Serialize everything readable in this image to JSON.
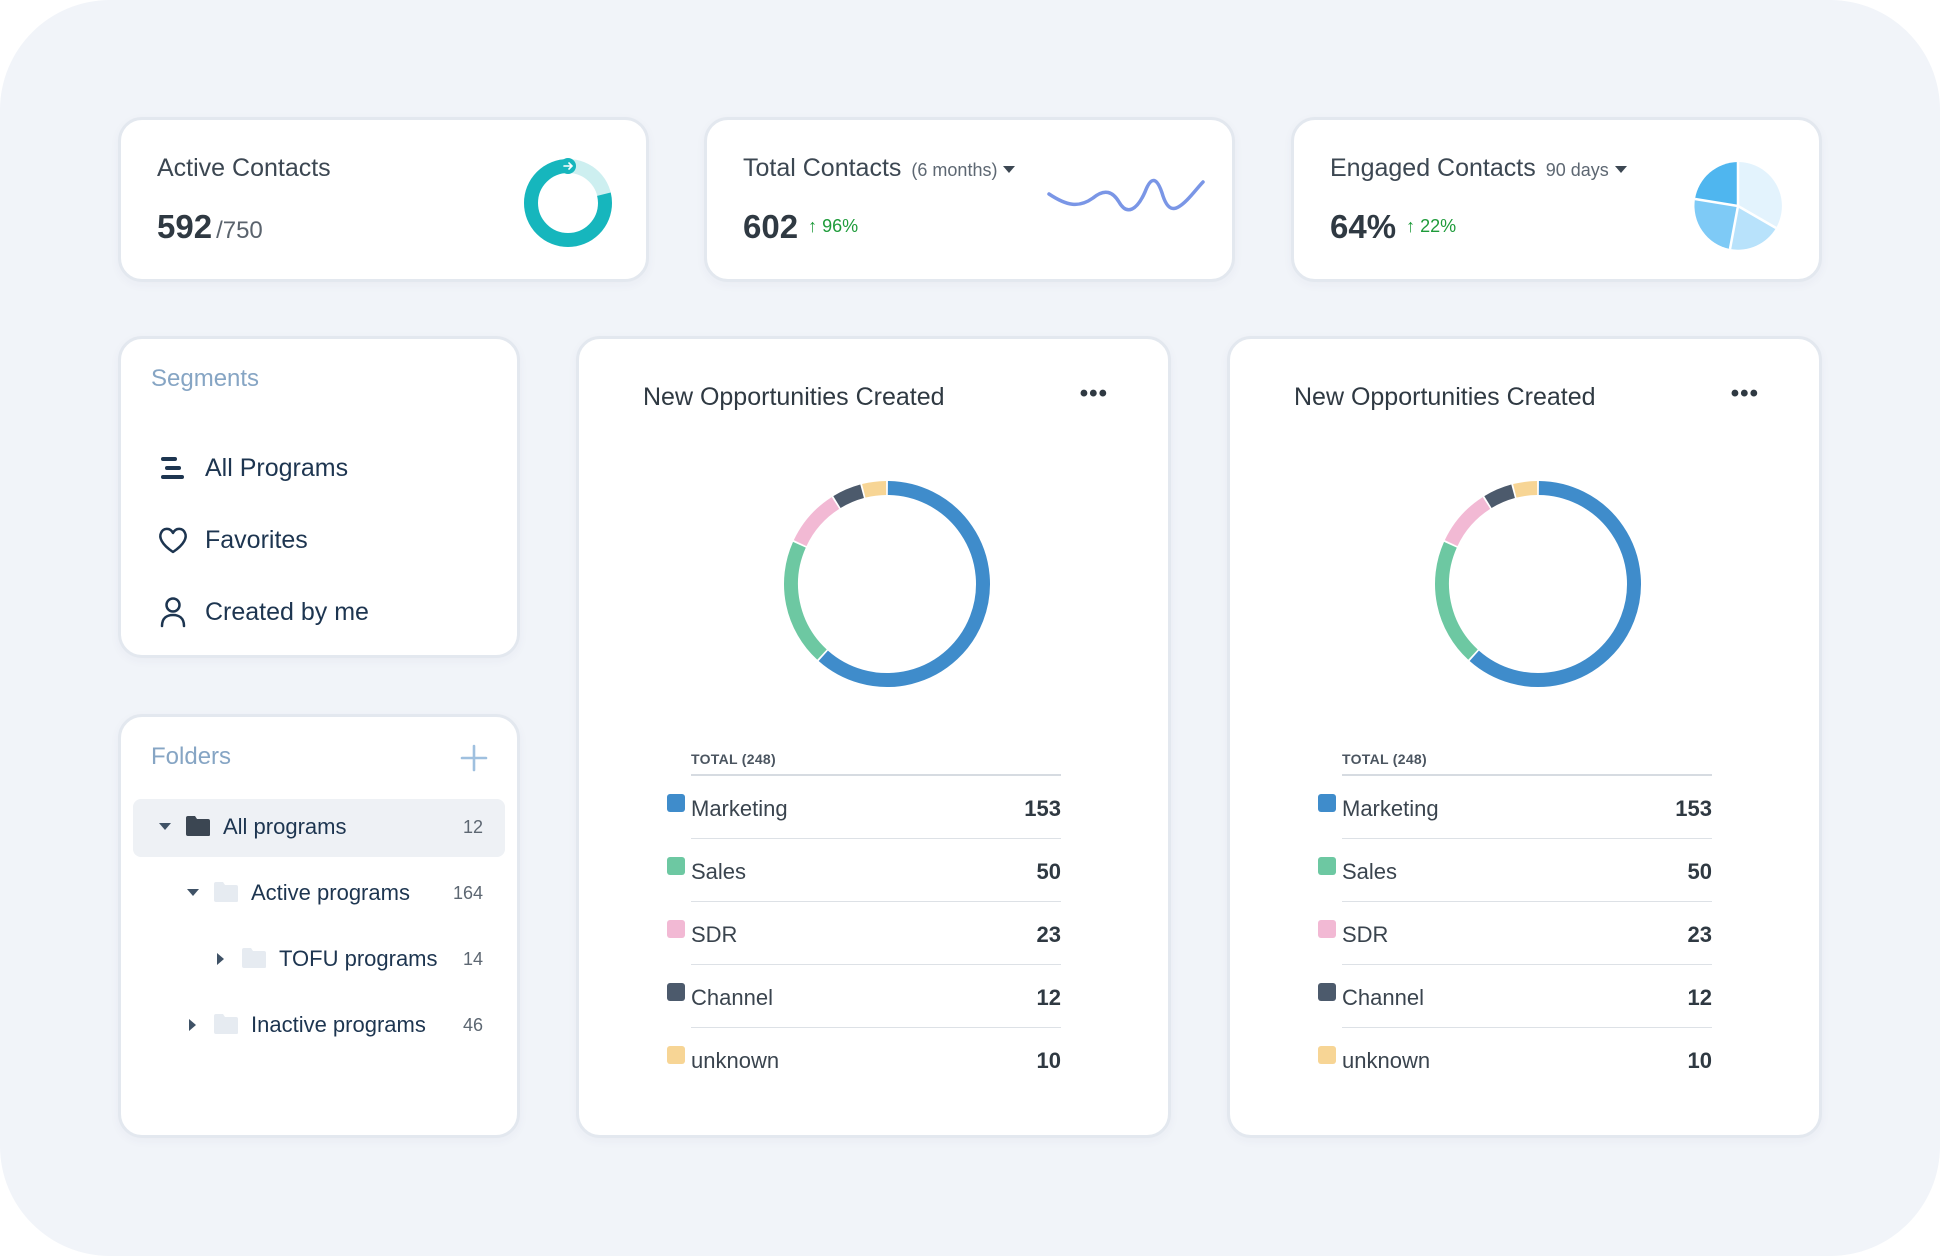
{
  "stats": {
    "active": {
      "title": "Active Contacts",
      "value": "592",
      "denominator": "/750",
      "fraction": 0.789
    },
    "total": {
      "title": "Total Contacts",
      "period": "(6 months)",
      "value": "602",
      "delta": "↑ 96%"
    },
    "engaged": {
      "title": "Engaged Contacts",
      "period": "90 days",
      "value": "64%",
      "delta": "↑ 22%"
    }
  },
  "segments": {
    "title": "Segments",
    "items": [
      {
        "label": "All Programs",
        "icon": "list-icon"
      },
      {
        "label": "Favorites",
        "icon": "heart-icon"
      },
      {
        "label": "Created by me",
        "icon": "user-icon"
      }
    ]
  },
  "folders": {
    "title": "Folders",
    "items": [
      {
        "label": "All programs",
        "count": "12",
        "expanded": true,
        "level": 0,
        "selected": true
      },
      {
        "label": "Active programs",
        "count": "164",
        "expanded": true,
        "level": 1
      },
      {
        "label": "TOFU programs",
        "count": "14",
        "expanded": false,
        "level": 2
      },
      {
        "label": "Inactive programs",
        "count": "46",
        "expanded": false,
        "level": 1
      }
    ]
  },
  "opportunities": [
    {
      "title": "New Opportunities Created",
      "more": "•••",
      "total_label": "TOTAL (248)"
    },
    {
      "title": "New Opportunities Created",
      "more": "•••",
      "total_label": "TOTAL (248)"
    }
  ],
  "chart_data": [
    {
      "type": "pie",
      "categories": [
        "Marketing",
        "Sales",
        "SDR",
        "Channel",
        "unknown"
      ],
      "values": [
        153,
        50,
        23,
        12,
        10
      ],
      "colors": [
        "#3f8ccb",
        "#6dc8a2",
        "#f2b9d4",
        "#4c5a6c",
        "#f7d595"
      ],
      "title": "New Opportunities Created"
    },
    {
      "type": "pie",
      "categories": [
        "Marketing",
        "Sales",
        "SDR",
        "Channel",
        "unknown"
      ],
      "values": [
        153,
        50,
        23,
        12,
        10
      ],
      "colors": [
        "#3f8ccb",
        "#6dc8a2",
        "#f2b9d4",
        "#4c5a6c",
        "#f7d595"
      ],
      "title": "New Opportunities Created"
    }
  ],
  "colors": {
    "teal": "#16b6bd",
    "teal_light": "#cdeff0",
    "wave": "#7a96e6",
    "pie_dark": "#4fb6ef",
    "pie_mid": "#7ecaf6",
    "pie_light": "#b8e2fb",
    "pie_pale": "#e3f3fd"
  }
}
